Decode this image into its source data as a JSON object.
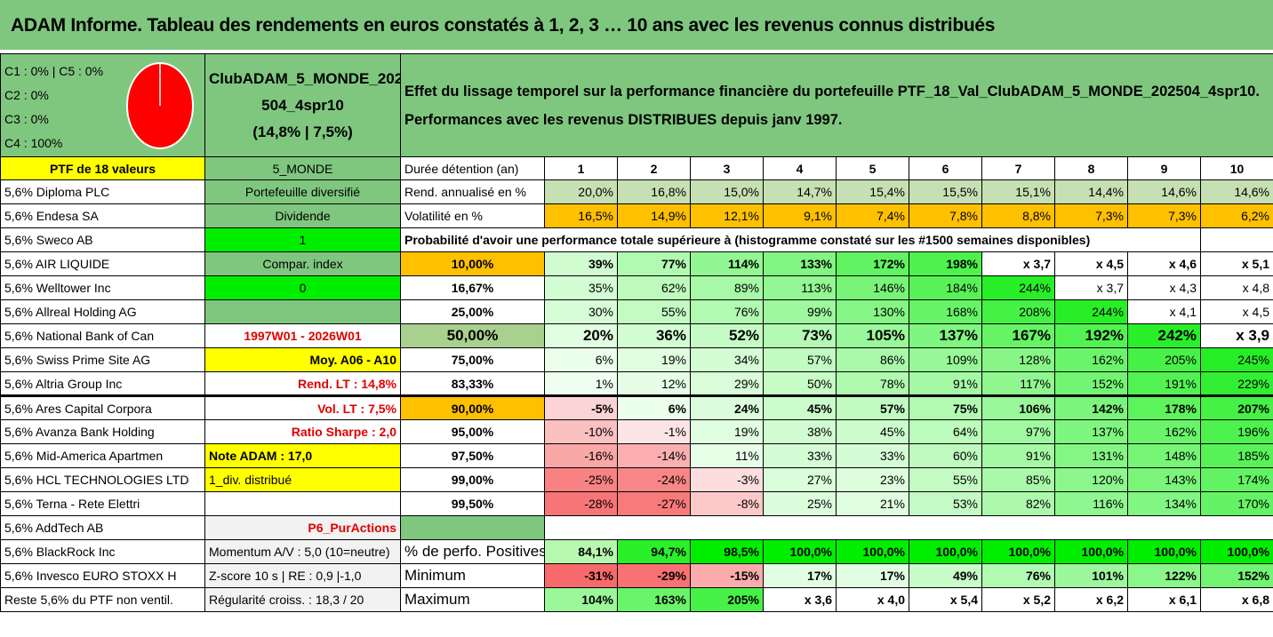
{
  "title": "ADAM Informe. Tableau des rendements en euros constatés à 1, 2, 3 … 10 ans avec les revenus connus distribués",
  "header": {
    "categories": [
      "C1 : 0% | C5 : 0%",
      "C2 : 0%",
      "C3 : 0%",
      "C4 : 100%"
    ],
    "pie": {
      "C4": 100,
      "color": "#ff0000"
    },
    "portfolio_lines": [
      "ClubADAM_5_MONDE_202",
      "504_4spr10",
      "(14,8% | 7,5%)"
    ],
    "description": [
      "Effet du lissage temporel sur la performance financière du portefeuille PTF_18_Val_ClubADAM_5_MONDE_202504_4spr10.",
      "Performances avec les revenus DISTRIBUES depuis janv 1997."
    ]
  },
  "ptf_label": "PTF de 18 valeurs",
  "zone": "5_MONDE",
  "duration_label": "Durée détention (an)",
  "years": [
    "1",
    "2",
    "3",
    "4",
    "5",
    "6",
    "7",
    "8",
    "9",
    "10"
  ],
  "holdings": [
    "5,6% Diploma PLC",
    "5,6% Endesa SA",
    "5,6% Sweco AB",
    "5,6% AIR LIQUIDE",
    "5,6% Welltower Inc",
    "5,6% Allreal Holding AG",
    "5,6% National Bank of Can",
    "5,6% Swiss Prime Site AG",
    "5,6% Altria Group Inc",
    "5,6% Ares Capital Corpora",
    "5,6% Avanza Bank Holding",
    "5,6% Mid-America Apartmen",
    "5,6% HCL TECHNOLOGIES LTD",
    "5,6% Terna - Rete Elettri",
    "5,6% AddTech AB",
    "5,6% BlackRock Inc",
    "5,6% Invesco EURO STOXX H",
    "Reste 5,6% du PTF non ventil."
  ],
  "side": [
    "Portefeuille diversifié",
    "Dividende",
    "1",
    "Compar. index",
    "0",
    "",
    "1997W01 - 2026W01",
    "Moy. A06 - A10",
    "Rend. LT : 14,8%",
    "Vol. LT : 7,5%",
    "Ratio Sharpe : 2,0",
    "Note ADAM : 17,0",
    "1_div. distribué",
    "",
    "P6_PurActions",
    "Momentum A/V : 5,0 (10=neutre)",
    "Z-score 10 s | RE : 0,9 |-1,0",
    "Régularité croiss. : 18,3 / 20"
  ],
  "rend": {
    "label": "Rend. annualisé en %",
    "values": [
      "20,0%",
      "16,8%",
      "15,0%",
      "14,7%",
      "15,4%",
      "15,5%",
      "15,1%",
      "14,4%",
      "14,6%",
      "14,6%"
    ]
  },
  "vol": {
    "label": "Volatilité en %",
    "values": [
      "16,5%",
      "14,9%",
      "12,1%",
      "9,1%",
      "7,4%",
      "7,8%",
      "8,8%",
      "7,3%",
      "7,3%",
      "6,2%"
    ]
  },
  "prob_title": "Probabilité d'avoir une performance totale supérieure à (histogramme constaté sur les #1500 semaines disponibles)",
  "prob": [
    {
      "p": "10,00%",
      "values": [
        "39%",
        "77%",
        "114%",
        "133%",
        "172%",
        "198%",
        "x 3,7",
        "x 4,5",
        "x 4,6",
        "x 5,1"
      ]
    },
    {
      "p": "16,67%",
      "values": [
        "35%",
        "62%",
        "89%",
        "113%",
        "146%",
        "184%",
        "244%",
        "x 3,7",
        "x 4,3",
        "x 4,8"
      ]
    },
    {
      "p": "25,00%",
      "values": [
        "30%",
        "55%",
        "76%",
        "99%",
        "130%",
        "168%",
        "208%",
        "244%",
        "x 4,1",
        "x 4,5"
      ]
    },
    {
      "p": "50,00%",
      "values": [
        "20%",
        "36%",
        "52%",
        "73%",
        "105%",
        "137%",
        "167%",
        "192%",
        "242%",
        "x 3,9"
      ]
    },
    {
      "p": "75,00%",
      "values": [
        "6%",
        "19%",
        "34%",
        "57%",
        "86%",
        "109%",
        "128%",
        "162%",
        "205%",
        "245%"
      ]
    },
    {
      "p": "83,33%",
      "values": [
        "1%",
        "12%",
        "29%",
        "50%",
        "78%",
        "91%",
        "117%",
        "152%",
        "191%",
        "229%"
      ]
    },
    {
      "p": "90,00%",
      "values": [
        "-5%",
        "6%",
        "24%",
        "45%",
        "57%",
        "75%",
        "106%",
        "142%",
        "178%",
        "207%"
      ]
    },
    {
      "p": "95,00%",
      "values": [
        "-10%",
        "-1%",
        "19%",
        "38%",
        "45%",
        "64%",
        "97%",
        "137%",
        "162%",
        "196%"
      ]
    },
    {
      "p": "97,50%",
      "values": [
        "-16%",
        "-14%",
        "11%",
        "33%",
        "33%",
        "60%",
        "91%",
        "131%",
        "148%",
        "185%"
      ]
    },
    {
      "p": "99,00%",
      "values": [
        "-25%",
        "-24%",
        "-3%",
        "27%",
        "23%",
        "55%",
        "85%",
        "120%",
        "143%",
        "174%"
      ]
    },
    {
      "p": "99,50%",
      "values": [
        "-28%",
        "-27%",
        "-8%",
        "25%",
        "21%",
        "53%",
        "82%",
        "116%",
        "134%",
        "170%"
      ]
    }
  ],
  "stats": [
    {
      "label": "% de perfo. Positives",
      "values": [
        "84,1%",
        "94,7%",
        "98,5%",
        "100,0%",
        "100,0%",
        "100,0%",
        "100,0%",
        "100,0%",
        "100,0%",
        "100,0%"
      ]
    },
    {
      "label": "Minimum",
      "values": [
        "-31%",
        "-29%",
        "-15%",
        "17%",
        "17%",
        "49%",
        "76%",
        "101%",
        "122%",
        "152%"
      ]
    },
    {
      "label": "Maximum",
      "values": [
        "104%",
        "163%",
        "205%",
        "x 3,6",
        "x 4,0",
        "x 5,4",
        "x 5,2",
        "x 6,2",
        "x 6,1",
        "x 6,8"
      ]
    }
  ]
}
